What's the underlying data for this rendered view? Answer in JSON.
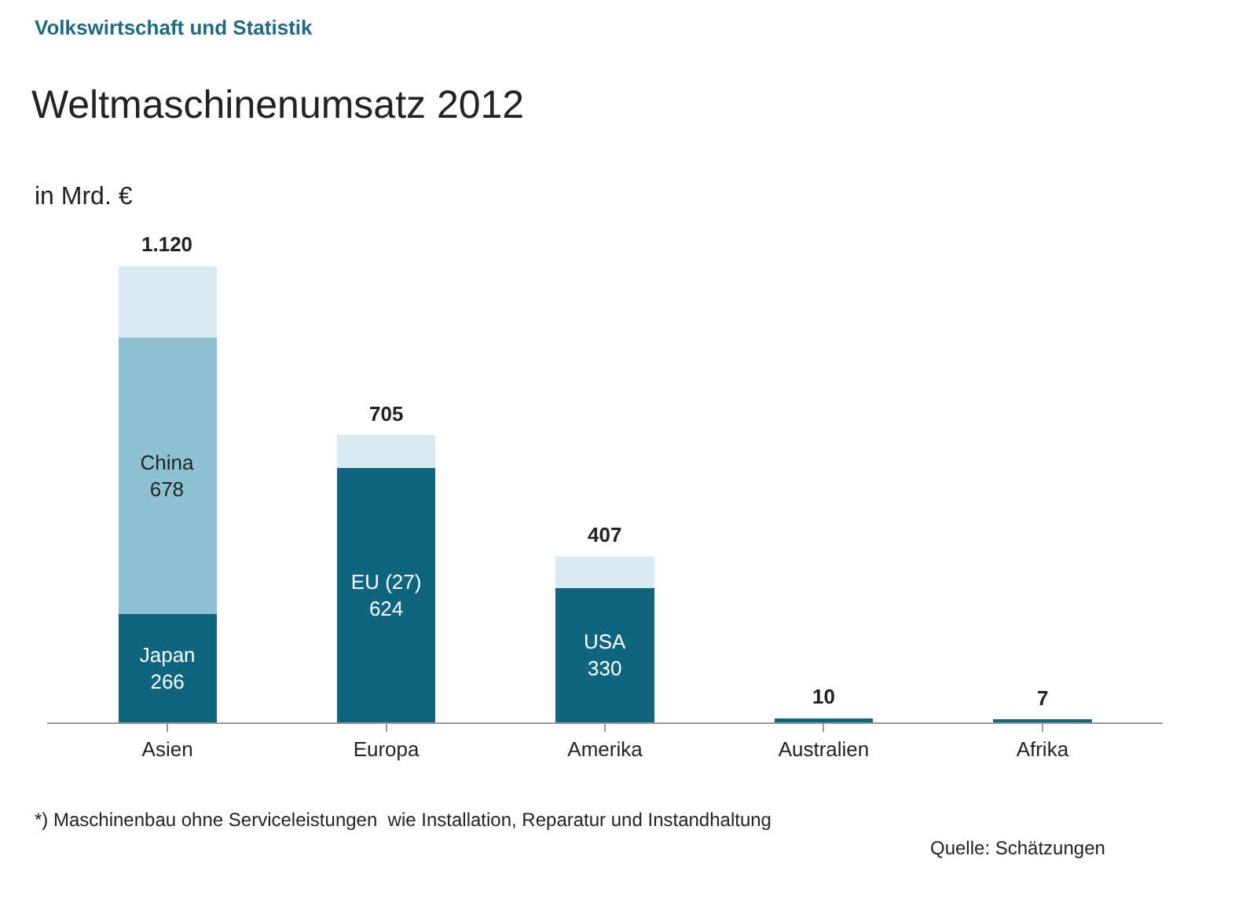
{
  "chart_data": {
    "type": "bar",
    "title": "Weltmaschinenumsatz 2012",
    "ylabel": "in Mrd. €",
    "annotations": [
      "Volkswirtschaft und Statistik",
      "*) Maschinenbau ohne Serviceleistungen  wie Installation, Reparatur und Instandhaltung",
      "Quelle: Schätzungen"
    ],
    "categories": [
      "Asien",
      "Europa",
      "Amerika",
      "Australien",
      "Afrika"
    ],
    "stacked": true,
    "series": [
      {
        "color": "#0d6580",
        "values": [
          266,
          624,
          330,
          10,
          7
        ],
        "value_labels": [
          "Japan\n266",
          "EU (27)\n624",
          "USA\n330",
          null,
          null
        ]
      },
      {
        "color": "#8cc2d1",
        "values": [
          678,
          null,
          null,
          null,
          null
        ],
        "value_labels": [
          "China\n678",
          null,
          null,
          null,
          null
        ]
      },
      {
        "color": "#d7eaf0",
        "values": [
          176,
          81,
          77,
          null,
          null
        ]
      }
    ],
    "totals": [
      "1.120",
      "705",
      "407",
      "10",
      "7"
    ],
    "tick_labels": "x",
    "grid": false
  }
}
